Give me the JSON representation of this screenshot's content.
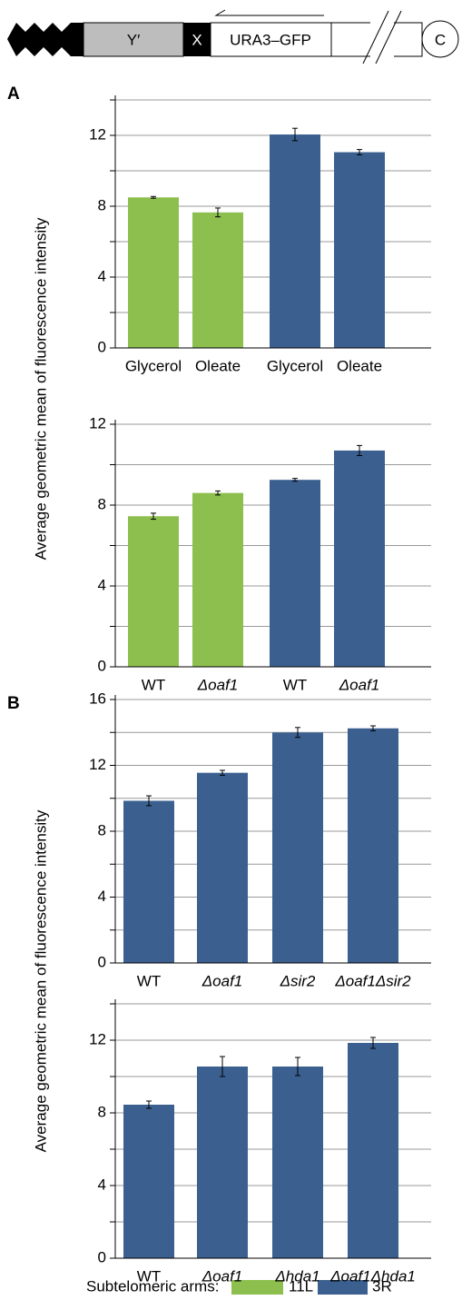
{
  "diagram": {
    "labels": [
      "Y′",
      "X",
      "URA3–GFP",
      "C"
    ]
  },
  "panels": [
    {
      "label": "A",
      "y_axis_label": "Average geometric mean of fluorescence intensity"
    },
    {
      "label": "B",
      "y_axis_label": "Average geometric mean of fluorescence intensity"
    }
  ],
  "chart_data": [
    {
      "type": "bar",
      "categories": [
        "Glycerol",
        "Oleate",
        "Glycerol",
        "Oleate"
      ],
      "values": [
        8.5,
        7.65,
        12.05,
        11.05
      ],
      "errors": [
        0.05,
        0.25,
        0.35,
        0.15
      ],
      "colors": [
        "#8cbf4e",
        "#8cbf4e",
        "#3b6090",
        "#3b6090"
      ],
      "ylim": [
        0,
        14
      ],
      "yticks": [
        0,
        4,
        8,
        12
      ],
      "minor_yticks": [
        2,
        6,
        10,
        14
      ],
      "grid": true
    },
    {
      "type": "bar",
      "categories": [
        "WT",
        "Δoaf1",
        "WT",
        "Δoaf1"
      ],
      "values": [
        7.45,
        8.6,
        9.25,
        10.7
      ],
      "errors": [
        0.15,
        0.1,
        0.07,
        0.25
      ],
      "colors": [
        "#8cbf4e",
        "#8cbf4e",
        "#3b6090",
        "#3b6090"
      ],
      "ylim": [
        0,
        12
      ],
      "yticks": [
        0,
        4,
        8,
        12
      ],
      "minor_yticks": [
        2,
        6,
        10
      ],
      "grid": true
    },
    {
      "type": "bar",
      "categories": [
        "WT",
        "Δoaf1",
        "Δsir2",
        "Δoaf1Δsir2"
      ],
      "values": [
        9.85,
        11.55,
        14.0,
        14.25
      ],
      "errors": [
        0.3,
        0.15,
        0.3,
        0.15
      ],
      "colors": [
        "#3b6090",
        "#3b6090",
        "#3b6090",
        "#3b6090"
      ],
      "ylim": [
        0,
        16
      ],
      "yticks": [
        0,
        4,
        8,
        12,
        16
      ],
      "minor_yticks": [
        2,
        6,
        10,
        14
      ],
      "grid": true
    },
    {
      "type": "bar",
      "categories": [
        "WT",
        "Δoaf1",
        "Δhda1",
        "Δoaf1Δhda1"
      ],
      "values": [
        8.45,
        10.55,
        10.55,
        11.85
      ],
      "errors": [
        0.2,
        0.55,
        0.5,
        0.3
      ],
      "colors": [
        "#3b6090",
        "#3b6090",
        "#3b6090",
        "#3b6090"
      ],
      "ylim": [
        0,
        14
      ],
      "yticks": [
        0,
        4,
        8,
        12
      ],
      "minor_yticks": [
        2,
        6,
        10,
        14
      ],
      "grid": true
    }
  ],
  "legend": {
    "title": "Subtelomeric arms:",
    "items": [
      {
        "name": "11L",
        "color": "#8cbf4e"
      },
      {
        "name": "3R",
        "color": "#3b6090"
      }
    ]
  }
}
